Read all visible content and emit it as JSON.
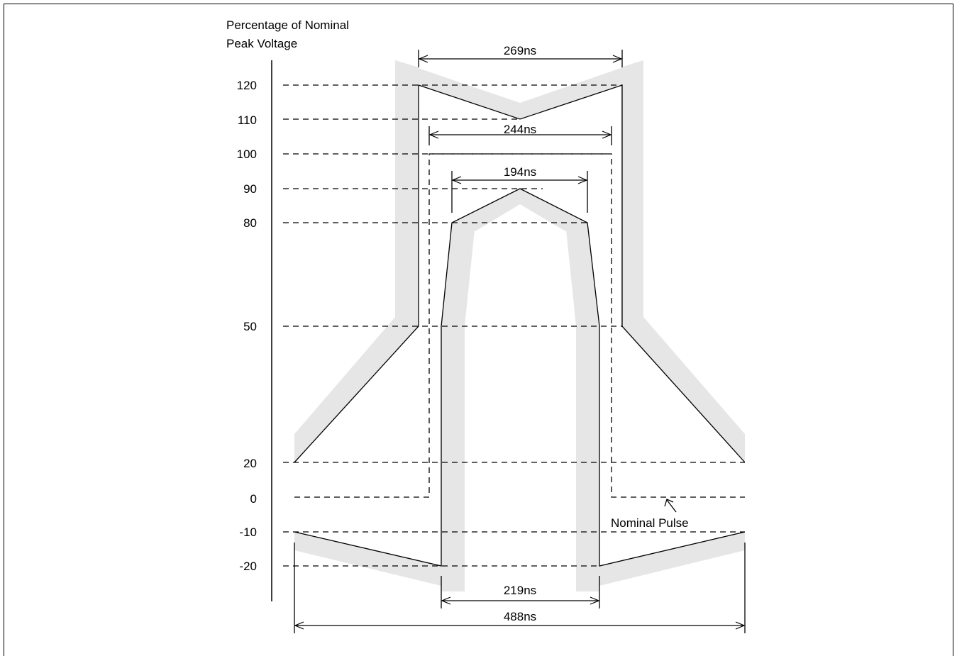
{
  "figure": {
    "y_axis_title_line1": "Percentage of Nominal",
    "y_axis_title_line2": "Peak Voltage",
    "y_ticks": [
      "120",
      "110",
      "100",
      "90",
      "80",
      "50",
      "20",
      "0",
      "-10",
      "-20"
    ],
    "dimensions": {
      "top_width": "269ns",
      "nominal_width": "244ns",
      "inner_top_width": "194ns",
      "bottom_inner_width": "219ns",
      "bottom_outer_width": "488ns"
    },
    "nominal_pulse_label": "Nominal Pulse",
    "colors": {
      "template_band": "#e6e6e6",
      "line": "#000000"
    }
  }
}
